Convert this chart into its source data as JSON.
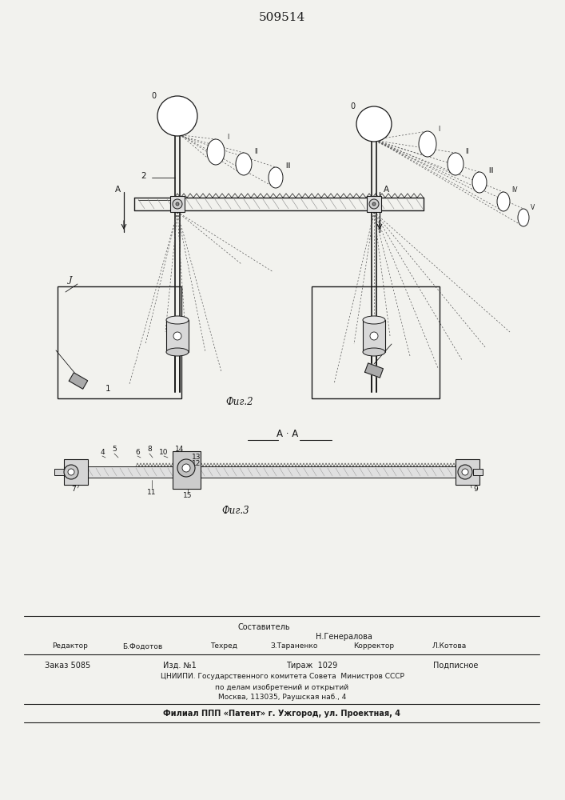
{
  "patent_number": "509514",
  "bg_color": "#f2f2ee",
  "line_color": "#1a1a1a",
  "fig2_caption": "Фиг.2",
  "fig3_caption": "Фиг.3",
  "footer": {
    "sostavitel": "Составитель",
    "sostavitel_name": "Н.Генералова",
    "redaktor": "Редактор",
    "redaktor_name": "Б.Фодотов",
    "tehred": "Техред",
    "tehred_name": "З.Тараненко",
    "korrektor": "Корректор",
    "korrektor_name": "Л.Котова",
    "zakaz": "Заказ 5085",
    "izd": "Изд. №1",
    "tirazh": "Тираж  1029",
    "podpisnoe": "Подписное",
    "tsniip1": "ЦНИИПИ. Государственного комитета Совета  Министров СССР",
    "tsniip2": "по делам изобретений и открытий",
    "tsniip3": "Москва, 113035, Раушская наб., 4",
    "filial": "Филиал ППП «Патент» г. Ужгород, ул. Проектная, 4"
  }
}
